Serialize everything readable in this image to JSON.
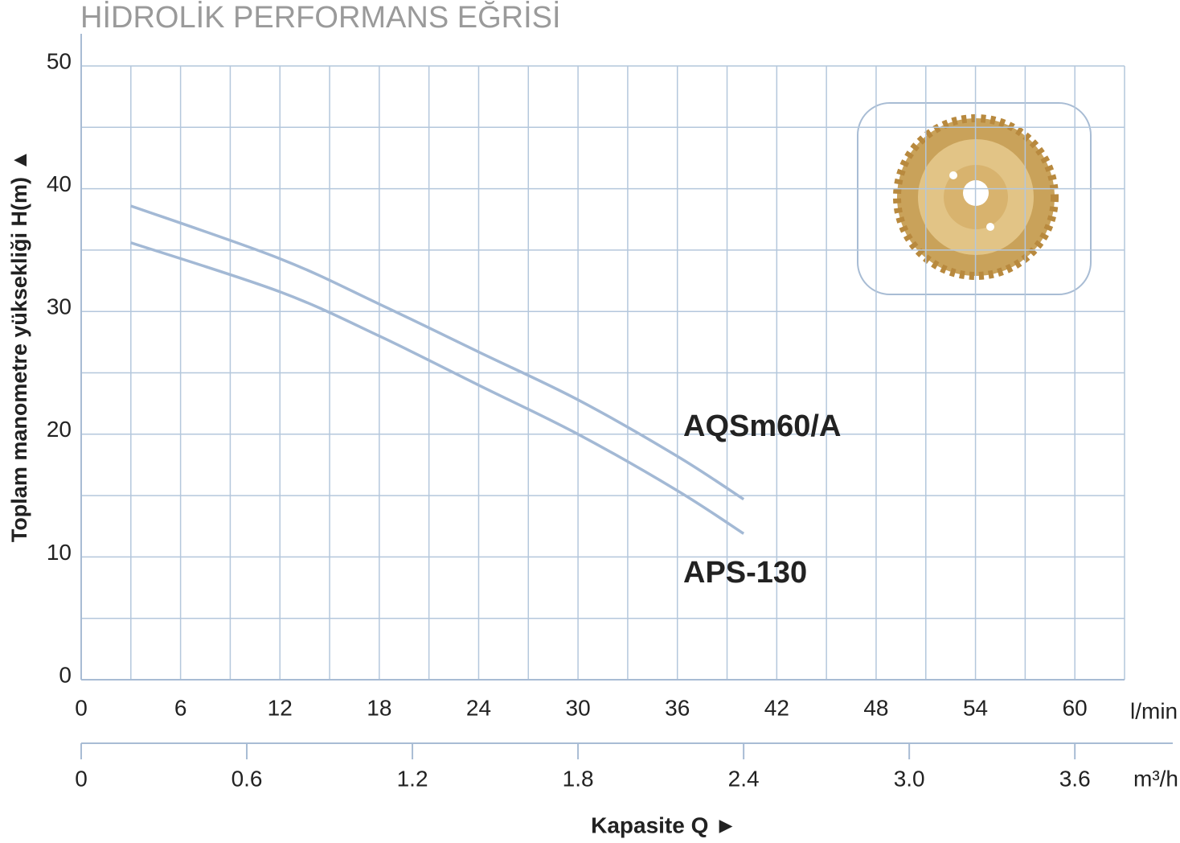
{
  "chart_data": {
    "type": "line",
    "title": "HİDROLİK PERFORMANS EĞRİSİ",
    "ylabel": "Toplam manometre yüksekliği  H(m)  ▲",
    "xlabel": "Kapasite Q  ►",
    "xunit": "l/min",
    "x2unit": "m³/h",
    "x": [
      3,
      12,
      18,
      24,
      30,
      36,
      40
    ],
    "series": [
      {
        "name": "AQSm60/A",
        "color": "#a3b9d5",
        "values": [
          38.6,
          34.3,
          30.6,
          26.7,
          22.8,
          18.2,
          14.7
        ]
      },
      {
        "name": "APS-130",
        "color": "#a3b9d5",
        "values": [
          35.6,
          31.6,
          28.0,
          24.0,
          20.0,
          15.4,
          11.9
        ]
      }
    ],
    "xlim": [
      0,
      63
    ],
    "xticks": [
      0,
      6,
      12,
      18,
      24,
      30,
      36,
      42,
      48,
      54,
      60
    ],
    "x2lim": [
      0,
      3.78
    ],
    "x2ticks": [
      0,
      0.6,
      1.2,
      1.8,
      2.4,
      {
        "value": 3,
        "label": "3.0"
      },
      3.6
    ],
    "ylim": [
      0,
      50
    ],
    "yticks": [
      0,
      10,
      20,
      30,
      40,
      50
    ],
    "grid": true
  }
}
